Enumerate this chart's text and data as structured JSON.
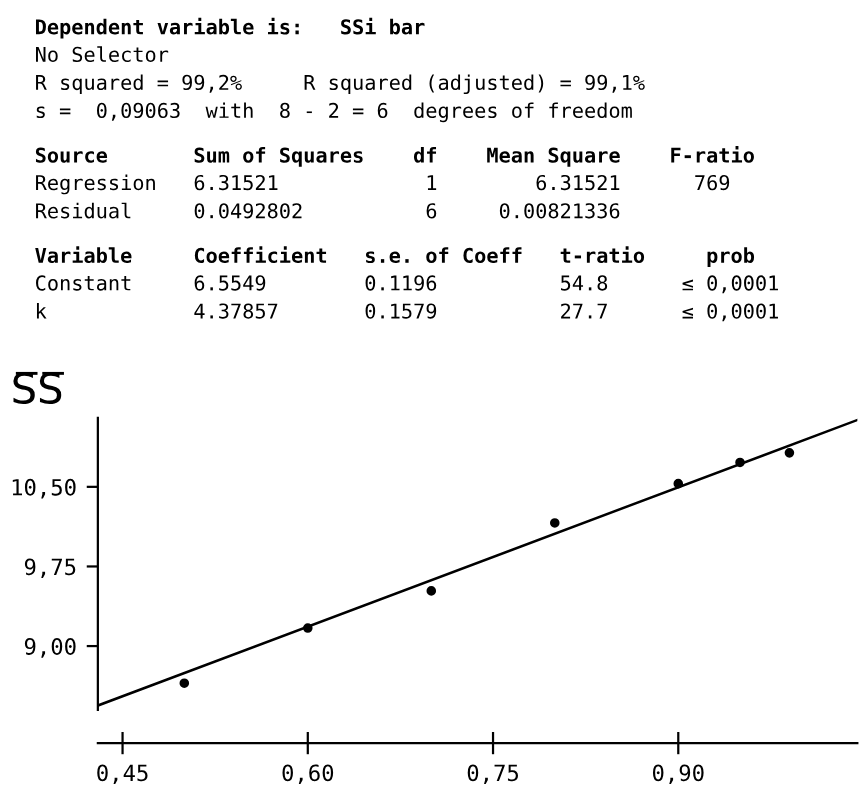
{
  "chart_data": {
    "type": "scatter",
    "ylabel": "S̅S̅",
    "annotations": [
      "Dependent variable is:   SSi bar",
      "No Selector",
      "R squared = 99,2%     R squared (adjusted) = 99,1%",
      "s =  0,09063  with  8 - 2 = 6  degrees of freedom",
      "Source       Sum of Squares    df    Mean Square    F-ratio",
      "Regression   6.31521            1        6.31521      769",
      "Residual     0.0492802          6     0.00821336",
      "Variable     Coefficient   s.e. of Coeff   t-ratio     prob",
      "Constant     6.5549        0.1196          54.8      ≤ 0,0001",
      "k            4.37857       0.1579          27.7      ≤ 0,0001"
    ],
    "series": [
      {
        "color": "#000000",
        "marker": "circle",
        "x": [
          0.5,
          0.6,
          0.7,
          0.8,
          0.9,
          0.95,
          0.99
        ],
        "values": [
          8.65,
          9.17,
          9.52,
          10.16,
          10.53,
          10.73,
          10.82
        ]
      },
      {
        "type": "line",
        "color": "#000000",
        "marker": "none",
        "line_style": "solid",
        "x": [
          0.43,
          1.045
        ],
        "values": [
          8.44,
          11.13
        ]
      }
    ],
    "xlim": [
      0.43,
      1.045
    ],
    "ylim": [
      8.4,
      11.15
    ],
    "xticks": [
      {
        "value": 0.45,
        "label": "0,45"
      },
      {
        "value": 0.6,
        "label": "0,60"
      },
      {
        "value": 0.75,
        "label": "0,75"
      },
      {
        "value": 0.9,
        "label": "0,90"
      }
    ],
    "yticks": [
      {
        "value": 9.0,
        "label": "9,00"
      },
      {
        "value": 9.75,
        "label": "9,75"
      },
      {
        "value": 10.5,
        "label": "10,50"
      }
    ],
    "grid": false,
    "legend": false
  }
}
